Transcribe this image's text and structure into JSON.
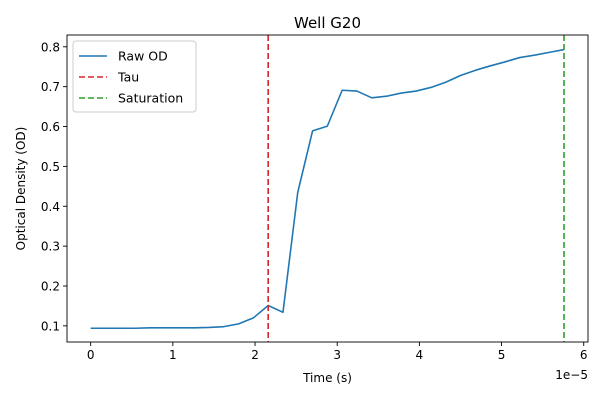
{
  "chart_data": {
    "type": "line",
    "title": "Well G20",
    "xlabel": "Time (s)",
    "ylabel": "Optical Density (OD)",
    "x_offset_text": "1e−5",
    "xlim": [
      -2.882e-06,
      6.052e-05
    ],
    "ylim": [
      0.0595,
      0.8296
    ],
    "x_ticks": [
      0,
      1e-05,
      2e-05,
      3e-05,
      4e-05,
      5e-05,
      6e-05
    ],
    "x_tick_labels": [
      "0",
      "1",
      "2",
      "3",
      "4",
      "5",
      "6"
    ],
    "y_ticks": [
      0.1,
      0.2,
      0.3,
      0.4,
      0.5,
      0.6,
      0.7,
      0.8
    ],
    "y_tick_labels": [
      "0.1",
      "0.2",
      "0.3",
      "0.4",
      "0.5",
      "0.6",
      "0.7",
      "0.8"
    ],
    "grid": false,
    "legend_position": "top-left",
    "series": [
      {
        "name": "Raw OD",
        "color": "#1f77b4",
        "x": [
          0,
          1.8e-06,
          3.6e-06,
          5.4e-06,
          7.2e-06,
          9e-06,
          1.08e-05,
          1.26e-05,
          1.44e-05,
          1.62e-05,
          1.8e-05,
          1.98e-05,
          2.16e-05,
          2.34e-05,
          2.52e-05,
          2.7e-05,
          2.88e-05,
          3.06e-05,
          3.24e-05,
          3.42e-05,
          3.6e-05,
          3.78e-05,
          3.96e-05,
          4.14e-05,
          4.32e-05,
          4.5e-05,
          4.68e-05,
          4.86e-05,
          5.04e-05,
          5.22e-05,
          5.4e-05,
          5.58e-05,
          5.76e-05
        ],
        "y": [
          0.094,
          0.094,
          0.094,
          0.094,
          0.095,
          0.095,
          0.095,
          0.095,
          0.096,
          0.098,
          0.105,
          0.12,
          0.151,
          0.134,
          0.435,
          0.589,
          0.601,
          0.691,
          0.689,
          0.672,
          0.676,
          0.684,
          0.689,
          0.698,
          0.711,
          0.728,
          0.741,
          0.752,
          0.762,
          0.773,
          0.779,
          0.786,
          0.793
        ]
      }
    ],
    "vlines": [
      {
        "name": "Tau",
        "x": 2.16e-05,
        "color": "#d62728"
      },
      {
        "name": "Saturation",
        "x": 5.76e-05,
        "color": "#2ca02c"
      }
    ]
  }
}
